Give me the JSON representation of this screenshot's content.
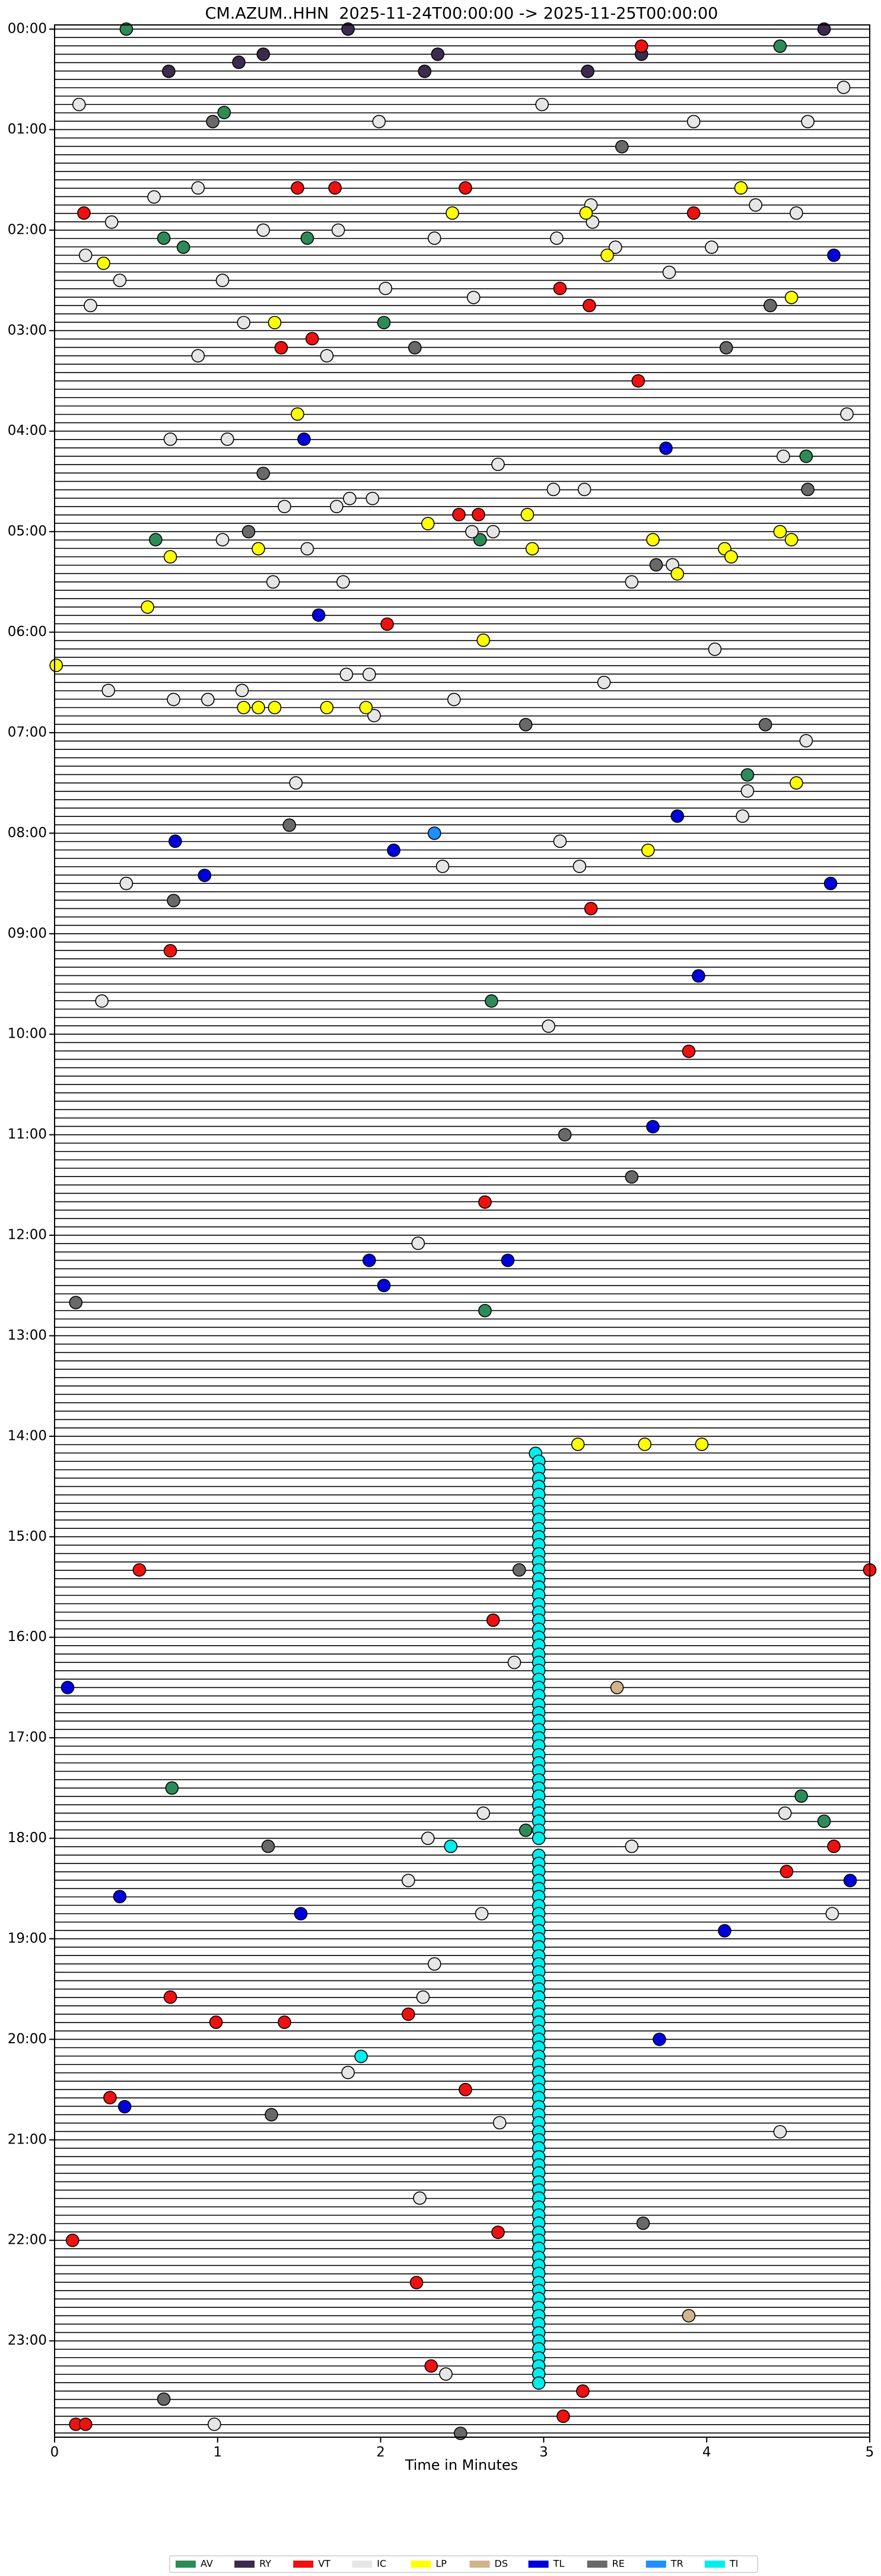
{
  "chart_data": {
    "type": "helicorder",
    "title": "CM.AZUM..HHN  2025-11-24T00:00:00 -> 2025-11-25T00:00:00",
    "x_label": "Time in Minutes",
    "xlim": [
      0,
      5
    ],
    "xticks": [
      0,
      1,
      2,
      3,
      4,
      5
    ],
    "ylim": [
      0,
      24
    ],
    "yticks": [
      {
        "value": 0,
        "label": "00:00"
      },
      {
        "value": 1,
        "label": "01:00"
      },
      {
        "value": 2,
        "label": "02:00"
      },
      {
        "value": 3,
        "label": "03:00"
      },
      {
        "value": 4,
        "label": "04:00"
      },
      {
        "value": 5,
        "label": "05:00"
      },
      {
        "value": 6,
        "label": "06:00"
      },
      {
        "value": 7,
        "label": "07:00"
      },
      {
        "value": 8,
        "label": "08:00"
      },
      {
        "value": 9,
        "label": "09:00"
      },
      {
        "value": 10,
        "label": "10:00"
      },
      {
        "value": 11,
        "label": "11:00"
      },
      {
        "value": 12,
        "label": "12:00"
      },
      {
        "value": 13,
        "label": "13:00"
      },
      {
        "value": 14,
        "label": "14:00"
      },
      {
        "value": 15,
        "label": "15:00"
      },
      {
        "value": 16,
        "label": "16:00"
      },
      {
        "value": 17,
        "label": "17:00"
      },
      {
        "value": 18,
        "label": "18:00"
      },
      {
        "value": 19,
        "label": "19:00"
      },
      {
        "value": 20,
        "label": "20:00"
      },
      {
        "value": 21,
        "label": "21:00"
      },
      {
        "value": 22,
        "label": "22:00"
      },
      {
        "value": 23,
        "label": "23:00"
      }
    ],
    "y_inverted": true,
    "grid": false,
    "legend": "bottom",
    "series": [
      {
        "name": "AV",
        "color": "#2e8b57",
        "x": [
          0.44,
          4.45,
          1.04,
          0.67,
          1.55,
          0.79,
          2.02,
          4.61,
          0.62,
          2.61,
          4.25,
          2.68,
          2.64,
          0.72,
          4.58,
          4.72,
          2.89
        ],
        "y": [
          0.0,
          0.17,
          0.83,
          2.08,
          2.08,
          2.17,
          2.92,
          4.25,
          5.08,
          5.08,
          7.42,
          9.67,
          12.75,
          17.5,
          17.58,
          17.83,
          17.92
        ]
      },
      {
        "name": "RY",
        "color": "#3b2b4f",
        "x": [
          1.8,
          4.72,
          1.28,
          2.35,
          3.6,
          1.13,
          0.7,
          2.27,
          3.27
        ],
        "y": [
          0.0,
          0.0,
          0.25,
          0.25,
          0.25,
          0.33,
          0.42,
          0.42,
          0.42
        ]
      },
      {
        "name": "VT",
        "color": "#ee1111",
        "x": [
          3.6,
          1.49,
          1.72,
          2.52,
          0.18,
          3.92,
          3.1,
          3.28,
          1.58,
          1.39,
          3.58,
          2.48,
          2.6,
          2.04,
          3.29,
          0.71,
          3.89,
          2.64,
          0.52,
          5.0,
          2.69,
          4.78,
          4.49,
          0.71,
          2.17,
          0.99,
          1.41,
          2.52,
          0.34,
          2.72,
          0.11,
          2.22,
          2.31,
          3.24,
          3.12,
          0.13,
          0.19
        ],
        "y": [
          0.17,
          1.58,
          1.58,
          1.58,
          1.83,
          1.83,
          2.58,
          2.75,
          3.08,
          3.17,
          3.5,
          4.83,
          4.83,
          5.92,
          8.75,
          9.17,
          10.17,
          11.67,
          15.33,
          15.33,
          15.83,
          18.08,
          18.33,
          19.58,
          19.75,
          19.83,
          19.83,
          20.5,
          20.58,
          21.92,
          22.0,
          22.42,
          23.25,
          23.5,
          23.75,
          23.83,
          23.83
        ]
      },
      {
        "name": "IC",
        "color": "#e6e6e6",
        "x": [
          4.84,
          2.99,
          0.15,
          1.99,
          3.92,
          4.62,
          0.88,
          0.61,
          3.29,
          4.3,
          4.55,
          0.35,
          3.3,
          1.28,
          1.74,
          2.33,
          3.08,
          3.44,
          4.03,
          0.19,
          3.77,
          0.4,
          1.03,
          2.03,
          2.57,
          0.22,
          1.16,
          0.88,
          1.67,
          4.86,
          0.71,
          1.06,
          4.47,
          2.72,
          3.06,
          3.25,
          1.81,
          1.95,
          1.41,
          1.73,
          2.56,
          2.69,
          1.03,
          1.55,
          3.79,
          1.34,
          1.77,
          3.54,
          4.05,
          1.79,
          1.93,
          3.37,
          0.33,
          1.15,
          0.73,
          0.94,
          2.45,
          1.96,
          4.61,
          1.48,
          4.25,
          4.22,
          3.1,
          2.38,
          3.22,
          0.44,
          0.29,
          3.03,
          2.23,
          2.82,
          2.63,
          4.48,
          2.29,
          3.54,
          2.17,
          2.62,
          4.77,
          2.33,
          2.26,
          1.8,
          2.73,
          4.45,
          2.24,
          2.4,
          0.98
        ],
        "y": [
          0.58,
          0.75,
          0.75,
          0.92,
          0.92,
          0.92,
          1.58,
          1.67,
          1.75,
          1.75,
          1.83,
          1.92,
          1.92,
          2.0,
          2.0,
          2.08,
          2.08,
          2.17,
          2.17,
          2.25,
          2.42,
          2.5,
          2.5,
          2.58,
          2.67,
          2.75,
          2.92,
          3.25,
          3.25,
          3.83,
          4.08,
          4.08,
          4.25,
          4.33,
          4.58,
          4.58,
          4.67,
          4.67,
          4.75,
          4.75,
          5.0,
          5.0,
          5.08,
          5.17,
          5.33,
          5.5,
          5.5,
          5.5,
          6.17,
          6.42,
          6.42,
          6.5,
          6.58,
          6.58,
          6.67,
          6.67,
          6.67,
          6.83,
          7.08,
          7.5,
          7.58,
          7.83,
          8.08,
          8.33,
          8.33,
          8.5,
          9.67,
          9.92,
          12.08,
          16.25,
          17.75,
          17.75,
          18.0,
          18.08,
          18.42,
          18.75,
          18.75,
          19.25,
          19.58,
          20.33,
          20.83,
          20.92,
          21.58,
          23.33,
          23.83
        ]
      },
      {
        "name": "LP",
        "color": "#ffff00",
        "x": [
          4.21,
          2.44,
          3.26,
          3.39,
          0.3,
          4.52,
          1.35,
          1.49,
          2.9,
          2.29,
          4.45,
          3.67,
          4.52,
          1.25,
          2.93,
          4.11,
          0.71,
          4.15,
          3.82,
          0.57,
          2.63,
          0.01,
          1.16,
          1.25,
          1.35,
          1.67,
          1.91,
          4.55,
          3.64,
          3.21,
          3.62,
          3.97
        ],
        "y": [
          1.58,
          1.83,
          1.83,
          2.25,
          2.33,
          2.67,
          2.92,
          3.83,
          4.83,
          4.92,
          5.0,
          5.08,
          5.08,
          5.17,
          5.17,
          5.17,
          5.25,
          5.25,
          5.42,
          5.75,
          6.08,
          6.33,
          6.75,
          6.75,
          6.75,
          6.75,
          6.75,
          7.5,
          8.17,
          14.08,
          14.08,
          14.08
        ]
      },
      {
        "name": "DS",
        "color": "#d2b48c",
        "x": [
          3.45,
          3.89
        ],
        "y": [
          16.5,
          22.75
        ]
      },
      {
        "name": "TL",
        "color": "#0000dd",
        "x": [
          4.78,
          1.53,
          3.75,
          1.62,
          3.82,
          0.74,
          2.08,
          0.92,
          4.76,
          3.95,
          3.67,
          1.93,
          2.78,
          2.02,
          0.08,
          4.88,
          0.4,
          1.51,
          4.11,
          3.71,
          0.43
        ],
        "y": [
          2.25,
          4.08,
          4.17,
          5.83,
          7.83,
          8.08,
          8.17,
          8.42,
          8.5,
          9.42,
          10.92,
          12.25,
          12.25,
          12.5,
          16.5,
          18.42,
          18.58,
          18.75,
          18.92,
          20.0,
          20.67
        ]
      },
      {
        "name": "RE",
        "color": "#696969",
        "x": [
          0.97,
          3.48,
          4.39,
          2.21,
          4.12,
          4.62,
          1.28,
          1.19,
          3.69,
          2.89,
          4.36,
          1.44,
          0.73,
          3.13,
          3.54,
          0.13,
          2.85,
          1.31,
          1.33,
          3.61,
          0.67,
          2.49
        ],
        "y": [
          0.92,
          1.17,
          2.75,
          3.17,
          3.17,
          4.58,
          4.42,
          5.0,
          5.33,
          6.92,
          6.92,
          7.92,
          8.67,
          11.0,
          11.42,
          12.67,
          15.33,
          18.08,
          20.75,
          21.83,
          23.58,
          23.92
        ]
      },
      {
        "name": "TR",
        "color": "#1e90ff",
        "x": [
          2.33
        ],
        "y": [
          8.0
        ]
      },
      {
        "name": "TI",
        "color": "#00eeee",
        "x": [
          2.95,
          2.97,
          2.97,
          2.97,
          2.97,
          2.97,
          2.97,
          2.97,
          2.97,
          2.97,
          2.97,
          2.97,
          2.97,
          2.97,
          2.97,
          2.97,
          2.97,
          2.97,
          2.97,
          2.97,
          2.97,
          2.97,
          2.97,
          2.97,
          2.97,
          2.97,
          2.97,
          2.97,
          2.97,
          2.97,
          2.97,
          2.97,
          2.97,
          2.97,
          2.97,
          2.97,
          2.97,
          2.97,
          2.97,
          2.97,
          2.97,
          2.97,
          2.97,
          2.97,
          2.97,
          2.97,
          2.97,
          2.97,
          2.97,
          2.97,
          2.97,
          2.97,
          2.97,
          2.97,
          2.97,
          2.97,
          2.97,
          2.97,
          2.97,
          2.97,
          2.97,
          2.97,
          2.97,
          2.97,
          2.97,
          2.97,
          2.97,
          2.97,
          2.97,
          2.97,
          2.97,
          2.97,
          2.97,
          2.97,
          2.97,
          2.97,
          2.97,
          2.97,
          2.97,
          2.97,
          2.97,
          2.97,
          2.97,
          2.97,
          2.97,
          2.97,
          2.97,
          2.97,
          2.97,
          2.97,
          2.97,
          2.97,
          2.97,
          2.97,
          2.97,
          2.97,
          2.97,
          2.97,
          2.97,
          2.97,
          2.97,
          2.97,
          2.97,
          2.97,
          2.97,
          2.97,
          2.97,
          2.97,
          2.97,
          2.97,
          2.97,
          2.43,
          1.88
        ],
        "y": [
          14.17,
          14.25,
          14.33,
          14.42,
          14.5,
          14.58,
          14.67,
          14.75,
          14.83,
          14.92,
          15.0,
          15.08,
          15.17,
          15.25,
          15.33,
          15.42,
          15.5,
          15.58,
          15.67,
          15.75,
          15.83,
          15.92,
          16.0,
          16.08,
          16.17,
          16.25,
          16.33,
          16.42,
          16.5,
          16.58,
          16.67,
          16.75,
          16.83,
          16.92,
          17.0,
          17.08,
          17.17,
          17.25,
          17.33,
          17.42,
          17.5,
          17.58,
          17.67,
          17.75,
          17.83,
          17.92,
          18.0,
          18.17,
          18.25,
          18.33,
          18.42,
          18.5,
          18.58,
          18.67,
          18.75,
          18.83,
          18.92,
          19.0,
          19.08,
          19.17,
          19.25,
          19.33,
          19.42,
          19.5,
          19.58,
          19.67,
          19.75,
          19.83,
          19.92,
          20.0,
          20.08,
          20.17,
          20.25,
          20.33,
          20.42,
          20.5,
          20.58,
          20.67,
          20.75,
          20.83,
          20.92,
          21.0,
          21.08,
          21.17,
          21.25,
          21.33,
          21.42,
          21.5,
          21.58,
          21.67,
          21.75,
          21.83,
          21.92,
          22.0,
          22.08,
          22.17,
          22.25,
          22.33,
          22.42,
          22.5,
          22.58,
          22.67,
          22.75,
          22.83,
          22.92,
          23.0,
          23.08,
          23.17,
          23.25,
          23.33,
          23.42,
          18.08,
          20.17
        ]
      }
    ]
  }
}
